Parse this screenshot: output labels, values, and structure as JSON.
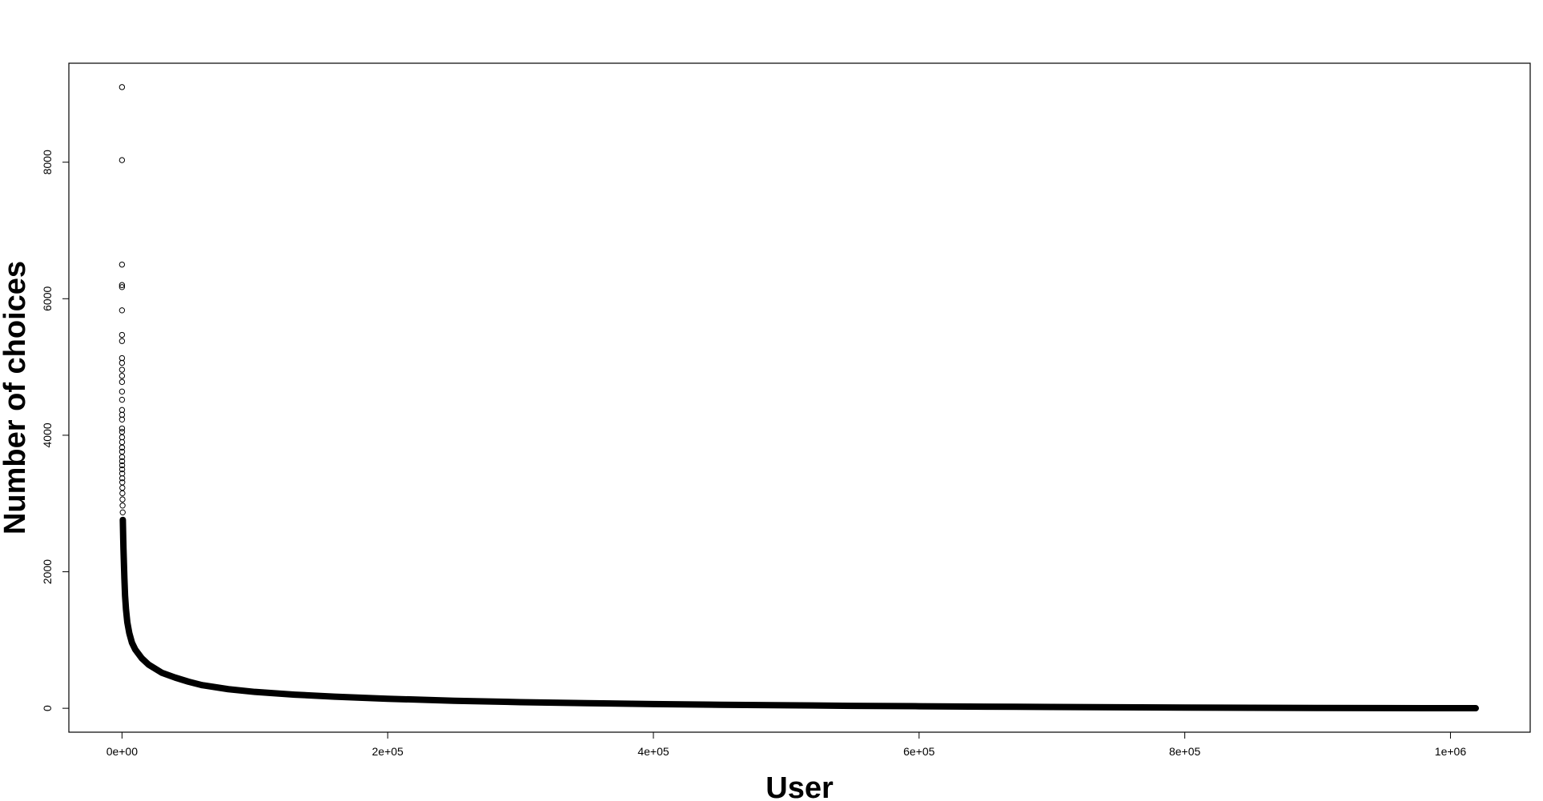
{
  "chart_data": {
    "type": "scatter",
    "title": "",
    "xlabel": "User",
    "ylabel": "Number of choices",
    "xlim": [
      -40000,
      1060000
    ],
    "ylim": [
      -350,
      9450
    ],
    "xticks": [
      0,
      200000,
      400000,
      600000,
      800000,
      1000000
    ],
    "xtick_labels": [
      "0e+00",
      "2e+05",
      "4e+05",
      "6e+05",
      "8e+05",
      "1e+06"
    ],
    "yticks": [
      0,
      2000,
      4000,
      6000,
      8000
    ],
    "ytick_labels": [
      "0",
      "2000",
      "4000",
      "6000",
      "8000"
    ],
    "grid": false,
    "marker": "open-circle",
    "color": "#000000",
    "series": [
      {
        "x": [
          1,
          2,
          3,
          4,
          5,
          6,
          7,
          8,
          9,
          10,
          12,
          14,
          16,
          18,
          20,
          23,
          26,
          30,
          35,
          40,
          46,
          53,
          60,
          70,
          80,
          95,
          110,
          130,
          150,
          180,
          210,
          250,
          300,
          360,
          430,
          520,
          620,
          750,
          900,
          1100,
          1400,
          1800,
          2300,
          3000,
          4000,
          5500,
          7500,
          10000,
          15000,
          20000,
          30000,
          40000,
          50000,
          60000,
          80000,
          100000,
          130000,
          160000,
          200000,
          250000,
          300000,
          350000,
          400000,
          450000,
          500000,
          550000,
          600000,
          650000,
          700000,
          750000,
          800000,
          850000,
          900000,
          950000,
          1000000,
          1019000
        ],
        "y": [
          9100,
          8030,
          6500,
          6200,
          6170,
          5830,
          5470,
          5380,
          5130,
          5060,
          4960,
          4870,
          4780,
          4640,
          4520,
          4370,
          4300,
          4230,
          4100,
          4050,
          3970,
          3900,
          3820,
          3760,
          3680,
          3620,
          3560,
          3500,
          3440,
          3370,
          3310,
          3230,
          3150,
          3060,
          2970,
          2870,
          2760,
          2640,
          2500,
          2340,
          2150,
          1900,
          1650,
          1450,
          1260,
          1100,
          960,
          860,
          730,
          640,
          520,
          450,
          390,
          340,
          280,
          240,
          200,
          170,
          140,
          110,
          90,
          75,
          62,
          52,
          44,
          36,
          30,
          24,
          19,
          15,
          11,
          8,
          5,
          3,
          2,
          1
        ]
      }
    ]
  }
}
